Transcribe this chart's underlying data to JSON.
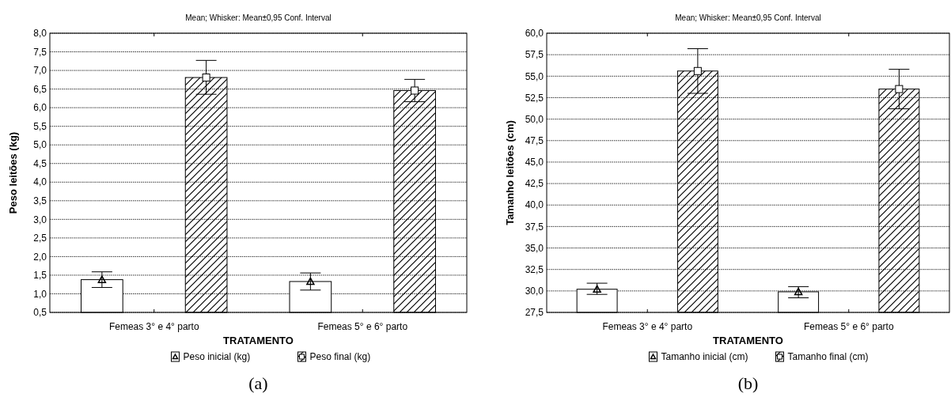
{
  "chart_data": [
    {
      "type": "bar",
      "title": "Mean; Whisker: Mean±0,95 Conf. Interval",
      "xlabel": "TRATAMENTO",
      "ylabel": "Peso leitões (kg)",
      "categories": [
        "Femeas 3° e 4° parto",
        "Femeas 5° e 6° parto"
      ],
      "series": [
        {
          "name": "Peso inicial (kg)",
          "color": "#ffffff",
          "marker": "triangle",
          "values": [
            1.38,
            1.33
          ],
          "errors": [
            [
              1.17,
              1.59
            ],
            [
              1.1,
              1.56
            ]
          ]
        },
        {
          "name": "Peso final (kg)",
          "color": "#000000",
          "marker": "square",
          "values": [
            6.81,
            6.46
          ],
          "errors": [
            [
              6.36,
              7.27
            ],
            [
              6.16,
              6.76
            ]
          ]
        }
      ],
      "ylim": [
        0.5,
        8
      ],
      "yticks": [
        {
          "value": 0.5,
          "label": "0,5"
        },
        {
          "value": 1,
          "label": "1,0"
        },
        {
          "value": 1.5,
          "label": "1,5"
        },
        {
          "value": 2,
          "label": "2,0"
        },
        {
          "value": 2.5,
          "label": "2,5"
        },
        {
          "value": 3,
          "label": "3,0"
        },
        {
          "value": 3.5,
          "label": "3,5"
        },
        {
          "value": 4,
          "label": "4,0"
        },
        {
          "value": 4.5,
          "label": "4,5"
        },
        {
          "value": 5,
          "label": "5,0"
        },
        {
          "value": 5.5,
          "label": "5,5"
        },
        {
          "value": 6,
          "label": "6,0"
        },
        {
          "value": 6.5,
          "label": "6,5"
        },
        {
          "value": 7,
          "label": "7,0"
        },
        {
          "value": 7.5,
          "label": "7,5"
        },
        {
          "value": 8,
          "label": "8,0"
        }
      ],
      "grid": "y",
      "legend": "bottom",
      "annotations": [
        "(a)"
      ]
    },
    {
      "type": "bar",
      "title": "Mean; Whisker: Mean±0,95 Conf. Interval",
      "xlabel": "TRATAMENTO",
      "ylabel": "Tamanho leitões (cm)",
      "categories": [
        "Femeas 3° e 4° parto",
        "Femeas 5° e 6° parto"
      ],
      "series": [
        {
          "name": "Tamanho inicial (cm)",
          "color": "#ffffff",
          "marker": "triangle",
          "values": [
            30.2,
            29.9
          ],
          "errors": [
            [
              29.6,
              30.9
            ],
            [
              29.2,
              30.5
            ]
          ]
        },
        {
          "name": "Tamanho final (cm)",
          "color": "#000000",
          "marker": "square",
          "values": [
            55.6,
            53.5
          ],
          "errors": [
            [
              53,
              58.2
            ],
            [
              51.2,
              55.8
            ]
          ]
        }
      ],
      "ylim": [
        27.5,
        60
      ],
      "yticks": [
        {
          "value": 27.5,
          "label": "27,5"
        },
        {
          "value": 30,
          "label": "30,0"
        },
        {
          "value": 32.5,
          "label": "32,5"
        },
        {
          "value": 35,
          "label": "35,0"
        },
        {
          "value": 37.5,
          "label": "37,5"
        },
        {
          "value": 40,
          "label": "40,0"
        },
        {
          "value": 42.5,
          "label": "42,5"
        },
        {
          "value": 45,
          "label": "45,0"
        },
        {
          "value": 47.5,
          "label": "47,5"
        },
        {
          "value": 50,
          "label": "50,0"
        },
        {
          "value": 52.5,
          "label": "52,5"
        },
        {
          "value": 55,
          "label": "55,0"
        },
        {
          "value": 57.5,
          "label": "57,5"
        },
        {
          "value": 60,
          "label": "60,0"
        }
      ],
      "grid": "y",
      "legend": "bottom",
      "annotations": [
        "(b)"
      ]
    }
  ]
}
